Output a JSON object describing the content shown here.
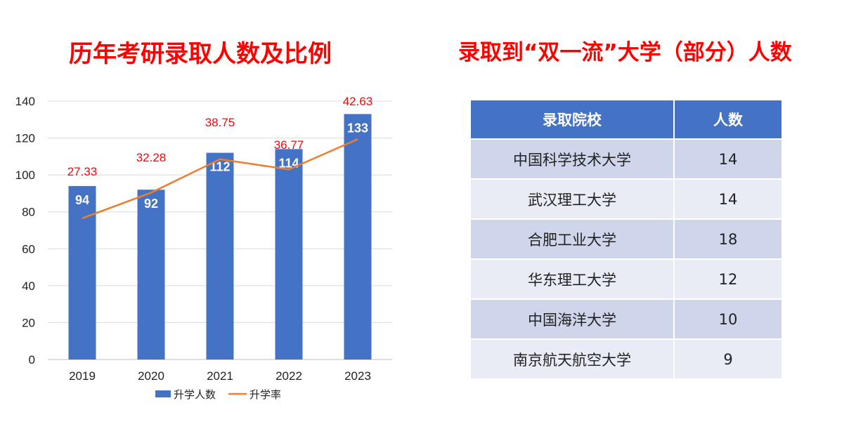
{
  "left_title": "历年考研录取人数及比例",
  "right_title": "录取到“双一流”大学（部分）人数",
  "colors": {
    "bar": "#4472c4",
    "line": "#ed7d31",
    "rate_label": "#ff0000",
    "title": "#ff0000"
  },
  "chart_data": {
    "type": "bar",
    "categories": [
      "2019",
      "2020",
      "2021",
      "2022",
      "2023"
    ],
    "series": [
      {
        "name": "升学人数",
        "type": "bar",
        "values": [
          94,
          92,
          112,
          114,
          133
        ]
      },
      {
        "name": "升学率",
        "type": "line",
        "values": [
          27.33,
          32.28,
          38.75,
          36.77,
          42.63
        ]
      }
    ],
    "bar_labels": [
      "94",
      "92",
      "112",
      "114",
      "133"
    ],
    "rate_labels": [
      "27.33",
      "32.28",
      "38.75",
      "36.77",
      "42.63"
    ],
    "y_ticks": [
      "0",
      "20",
      "40",
      "60",
      "80",
      "100",
      "120",
      "140"
    ],
    "ylim": [
      0,
      140
    ],
    "grid": true,
    "legend": "bottom"
  },
  "table": {
    "headers": [
      "录取院校",
      "人数"
    ],
    "rows": [
      [
        "中国科学技术大学",
        "14"
      ],
      [
        "武汉理工大学",
        "14"
      ],
      [
        "合肥工业大学",
        "18"
      ],
      [
        "华东理工大学",
        "12"
      ],
      [
        "中国海洋大学",
        "10"
      ],
      [
        "南京航天航空大学",
        "9"
      ]
    ]
  }
}
